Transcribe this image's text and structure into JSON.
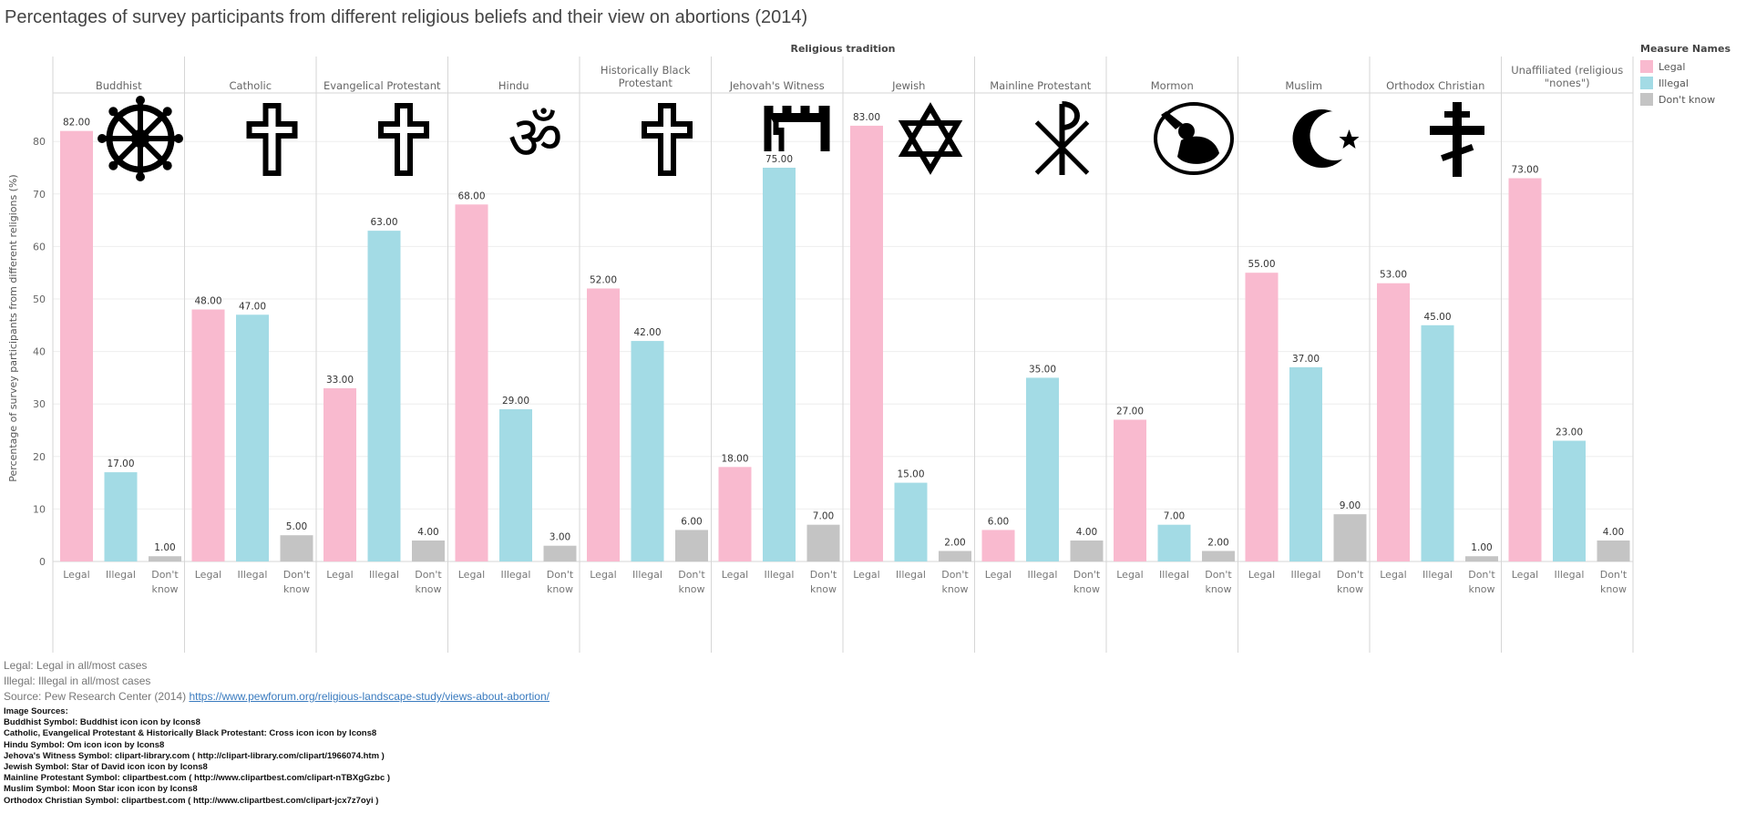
{
  "title": "Percentages of survey participants from different religious beliefs and their view on abortions (2014)",
  "chart_data": {
    "type": "bar",
    "title": "Percentages of survey participants from different religious beliefs and their view on abortions (2014)",
    "column_header": "Religious tradition",
    "ylabel": "Percentage of survey participants from different religions (%)",
    "ylim": [
      0,
      88
    ],
    "yticks": [
      0,
      10,
      20,
      30,
      40,
      50,
      60,
      70,
      80
    ],
    "measures": [
      "Legal",
      "Illegal",
      "Don't know"
    ],
    "groups": [
      {
        "name": "Buddhist",
        "icon": "dharma-wheel-icon",
        "values": [
          82,
          17,
          1
        ]
      },
      {
        "name": "Catholic",
        "icon": "cross-icon",
        "values": [
          48,
          47,
          5
        ]
      },
      {
        "name": "Evangelical Protestant",
        "icon": "cross-icon",
        "values": [
          33,
          63,
          4
        ]
      },
      {
        "name": "Hindu",
        "icon": "om-icon",
        "values": [
          68,
          29,
          3
        ]
      },
      {
        "name": "Historically Black Protestant",
        "icon": "cross-icon",
        "values": [
          52,
          42,
          6
        ]
      },
      {
        "name": "Jehovah's Witness",
        "icon": "tower-icon",
        "values": [
          18,
          75,
          7
        ]
      },
      {
        "name": "Jewish",
        "icon": "star-of-david-icon",
        "values": [
          83,
          15,
          2
        ]
      },
      {
        "name": "Mainline Protestant",
        "icon": "chi-rho-icon",
        "values": [
          6,
          35,
          4
        ]
      },
      {
        "name": "Mormon",
        "icon": "angel-moroni-icon",
        "values": [
          27,
          7,
          2
        ]
      },
      {
        "name": "Muslim",
        "icon": "moon-star-icon",
        "values": [
          55,
          37,
          9
        ]
      },
      {
        "name": "Orthodox Christian",
        "icon": "orthodox-cross-icon",
        "values": [
          53,
          45,
          1
        ]
      },
      {
        "name": "Unaffiliated (religious \"nones\")",
        "icon": "",
        "values": [
          73,
          23,
          4
        ]
      }
    ],
    "value_labels": [
      [
        "82.00",
        "17.00",
        "1.00"
      ],
      [
        "48.00",
        "47.00",
        "5.00"
      ],
      [
        "33.00",
        "63.00",
        "4.00"
      ],
      [
        "68.00",
        "29.00",
        "3.00"
      ],
      [
        "52.00",
        "42.00",
        "6.00"
      ],
      [
        "18.00",
        "75.00",
        "7.00"
      ],
      [
        "83.00",
        "15.00",
        "2.00"
      ],
      [
        "6.00",
        "35.00",
        "4.00"
      ],
      [
        "27.00",
        "7.00",
        "2.00"
      ],
      [
        "55.00",
        "37.00",
        "9.00"
      ],
      [
        "53.00",
        "45.00",
        "1.00"
      ],
      [
        "73.00",
        "23.00",
        "4.00"
      ]
    ],
    "legend": {
      "title": "Measure Names",
      "position": "top-right",
      "items": [
        {
          "label": "Legal",
          "color": "#f9bacf"
        },
        {
          "label": "Illegal",
          "color": "#a3dbe5"
        },
        {
          "label": "Don't know",
          "color": "#c4c4c4"
        }
      ]
    }
  },
  "colors": {
    "legal": "#f9bacf",
    "illegal": "#a3dbe5",
    "dont_know": "#c4c4c4",
    "grid": "#eeeeee",
    "divider": "#d6d6d6"
  },
  "notes": {
    "legal_note": "Legal: Legal in all/most cases",
    "illegal_note": "Illegal: Illegal in all/most cases",
    "source_prefix": "Source: Pew Research Center (2014) ",
    "source_link": "https://www.pewforum.org/religious-landscape-study/views-about-abortion/"
  },
  "image_sources": {
    "header": "Image Sources:",
    "lines": [
      "Buddhist Symbol: Buddhist icon icon by Icons8",
      "Catholic, Evangelical Protestant & Historically Black Protestant: Cross icon icon by Icons8",
      "Hindu Symbol: Om icon icon by Icons8",
      "Jehova's Witness Symbol: clipart-library.com ( http://clipart-library.com/clipart/1966074.htm )",
      "Jewish Symbol: Star of David icon icon by Icons8",
      "Mainline Protestant Symbol: clipartbest.com ( http://www.clipartbest.com/clipart-nTBXgGzbc )",
      "Muslim Symbol: Moon Star icon icon by Icons8",
      "Orthodox Christian Symbol: clipartbest.com ( http://www.clipartbest.com/clipart-jcx7z7oyi )"
    ]
  }
}
